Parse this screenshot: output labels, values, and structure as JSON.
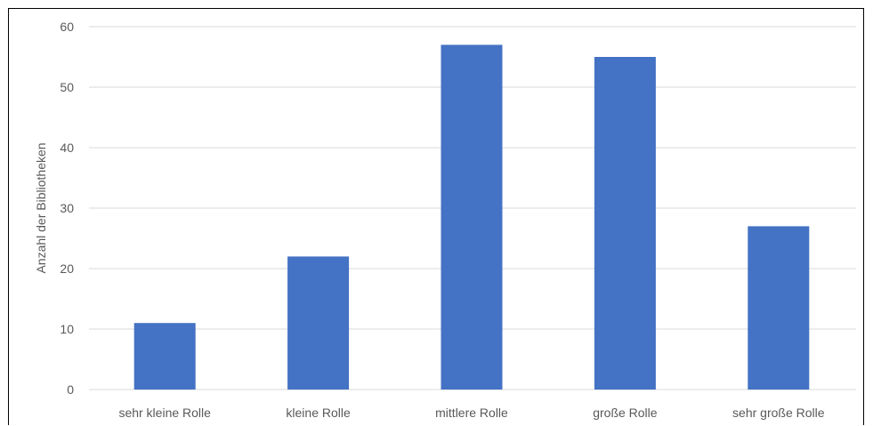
{
  "chart_data": {
    "type": "bar",
    "categories": [
      "sehr kleine Rolle",
      "kleine Rolle",
      "mittlere Rolle",
      "große Rolle",
      "sehr große Rolle"
    ],
    "values": [
      11,
      22,
      57,
      55,
      27
    ],
    "title": "",
    "xlabel": "",
    "ylabel": "Anzahl der Bibliotheken",
    "ylim": [
      0,
      60
    ],
    "yticks": [
      0,
      10,
      20,
      30,
      40,
      50,
      60
    ],
    "grid": true,
    "legend": "none",
    "bar_color": "#4472C4",
    "grid_color": "#D9D9D9",
    "text_color": "#595959"
  }
}
